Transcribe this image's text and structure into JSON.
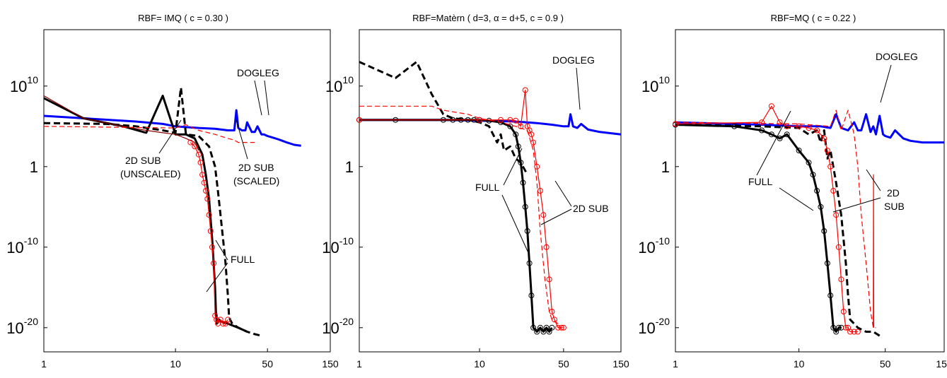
{
  "chart_data": [
    {
      "type": "line",
      "title": "RBF= IMQ ( c = 0.30 )",
      "xscale": "log",
      "yscale": "log",
      "xlim": [
        1,
        150
      ],
      "ylim_log10": [
        -23,
        17
      ],
      "xticks": [
        1,
        10,
        50,
        150
      ],
      "xtick_labels": [
        "1",
        "10",
        "50",
        "150"
      ],
      "yticks_log10": [
        10,
        0,
        -10,
        -20
      ],
      "ytick_labels": [
        {
          "base": "10",
          "exp": "10"
        },
        {
          "base": "1",
          "exp": ""
        },
        {
          "base": "10",
          "exp": "-10"
        },
        {
          "base": "10",
          "exp": "-20"
        }
      ],
      "series": [
        {
          "color": "#0000ff",
          "style": "thick-solid",
          "x": [
            1,
            2,
            5,
            8,
            10,
            15,
            20,
            25,
            28,
            29,
            30,
            32,
            34,
            35,
            38,
            40,
            42,
            45,
            47,
            50,
            55,
            60,
            65,
            70,
            80,
            90
          ],
          "y_log10": [
            6.3,
            6.0,
            5.6,
            5.3,
            5.0,
            4.8,
            4.7,
            4.5,
            4.5,
            7.0,
            4.8,
            4.5,
            4.5,
            5.5,
            4.3,
            4.3,
            5.0,
            4.0,
            4.0,
            3.8,
            3.6,
            3.4,
            3.2,
            3.0,
            2.7,
            2.6
          ]
        },
        {
          "color": "#000000",
          "style": "thick-solid",
          "x": [
            1,
            2,
            4,
            6,
            8,
            10,
            12,
            14,
            16,
            17,
            18,
            19,
            19.5,
            20,
            20.3,
            20.6,
            21,
            21.5,
            22,
            25,
            30,
            35
          ],
          "y_log10": [
            8.5,
            6.0,
            5.0,
            4.2,
            8.8,
            4.0,
            4.0,
            3.5,
            1.5,
            -1.0,
            -4.0,
            -9.0,
            -12.0,
            -15.0,
            -18.0,
            -19.5,
            -19.0,
            -19.0,
            -19.2,
            -19.5,
            -20.0,
            -20.5
          ]
        },
        {
          "color": "#000000",
          "style": "thick-dashed",
          "x": [
            1,
            3,
            5,
            8,
            10,
            11,
            12,
            15,
            18,
            20,
            21,
            22,
            23,
            24,
            25,
            25.5,
            26,
            27,
            30,
            35,
            40,
            45
          ],
          "y_log10": [
            5.4,
            5.3,
            5.0,
            4.5,
            4.2,
            9.8,
            4.0,
            3.8,
            2.5,
            0.0,
            -3.0,
            -6.0,
            -9.0,
            -12.0,
            -16.0,
            -18.5,
            -19.0,
            -19.5,
            -20.0,
            -20.5,
            -20.8,
            -21.0
          ]
        },
        {
          "color": "#8b0000",
          "style": "thin-solid",
          "x": [
            1,
            2,
            4,
            6,
            8,
            10,
            12,
            14,
            15
          ],
          "y_log10": [
            8.8,
            6.0,
            5.0,
            4.5,
            4.2,
            4.0,
            3.5,
            3.0,
            2.0
          ]
        },
        {
          "color": "#ff0000",
          "style": "thin-solid-circles",
          "x": [
            13,
            14,
            15,
            15.5,
            16,
            16.5,
            17,
            17.5,
            18,
            18.5,
            19,
            19.5,
            20,
            20.5,
            21,
            22,
            23,
            24,
            25
          ],
          "y_log10": [
            3.0,
            2.5,
            1.5,
            0.5,
            -1.0,
            -2.0,
            -3.0,
            -4.0,
            -6.0,
            -8.0,
            -10.0,
            -12.0,
            -18.5,
            -19.0,
            -19.5,
            -19.0,
            -19.5,
            -19.5,
            -19.0
          ]
        },
        {
          "color": "#ff0000",
          "style": "thin-dashed",
          "x": [
            1,
            10,
            12,
            15,
            20,
            25,
            28,
            30,
            35,
            40
          ],
          "y_log10": [
            5.0,
            4.8,
            5.2,
            4.5,
            4.0,
            3.5,
            3.3,
            3.0,
            3.0,
            3.0
          ]
        }
      ],
      "annotations": [
        {
          "lines": [
            "DOGLEG"
          ]
        },
        {
          "lines": [
            "2D SUB",
            "(UNSCALED)"
          ]
        },
        {
          "lines": [
            "2D SUB",
            "(SCALED)"
          ]
        },
        {
          "lines": [
            "FULL"
          ]
        }
      ]
    },
    {
      "type": "line",
      "title": "RBF=Matèrn ( d=3, α = d+5, c = 0.9 )",
      "xscale": "log",
      "yscale": "log",
      "xlim": [
        1,
        150
      ],
      "ylim_log10": [
        -23,
        17
      ],
      "xticks": [
        1,
        10,
        50,
        150
      ],
      "xtick_labels": [
        "1",
        "10",
        "50",
        "150"
      ],
      "yticks_log10": [
        10,
        0,
        -10,
        -20
      ],
      "ytick_labels": [
        {
          "base": "10",
          "exp": "10"
        },
        {
          "base": "1",
          "exp": ""
        },
        {
          "base": "10",
          "exp": "-10"
        },
        {
          "base": "10",
          "exp": "-20"
        }
      ],
      "series": [
        {
          "color": "#0000ff",
          "style": "thick-solid",
          "x": [
            1,
            5,
            10,
            20,
            30,
            40,
            50,
            55,
            57,
            60,
            65,
            70,
            80,
            100,
            150
          ],
          "y_log10": [
            5.8,
            5.8,
            5.7,
            5.6,
            5.4,
            5.2,
            5.0,
            5.0,
            6.5,
            5.0,
            4.8,
            5.3,
            4.6,
            4.3,
            4.0
          ]
        },
        {
          "color": "#000000",
          "style": "thick-solid-circles",
          "x": [
            1,
            2,
            5,
            6,
            7,
            8,
            9,
            10,
            12,
            15,
            18,
            20,
            21,
            22,
            23,
            24,
            25,
            26,
            27,
            28,
            30,
            32,
            34,
            36,
            38,
            40
          ],
          "y_log10": [
            5.8,
            5.8,
            5.8,
            5.8,
            5.8,
            5.8,
            5.8,
            5.8,
            5.7,
            5.5,
            5.0,
            4.0,
            2.5,
            0.5,
            -2.0,
            -5.0,
            -8.0,
            -12.0,
            -16.0,
            -20.0,
            -20.5,
            -20.0,
            -20.5,
            -20.0,
            -20.5,
            -20.0
          ]
        },
        {
          "color": "#000000",
          "style": "thick-dashed",
          "x": [
            1,
            2,
            3,
            4,
            5,
            6,
            8,
            10,
            12,
            14,
            15,
            16,
            18,
            20,
            22,
            25
          ],
          "y_log10": [
            13.0,
            11.0,
            13.0,
            9.0,
            6.5,
            6.0,
            5.8,
            5.5,
            5.0,
            3.0,
            4.0,
            2.0,
            2.5,
            1.0,
            0.5,
            -1.0
          ]
        },
        {
          "color": "#ff0000",
          "style": "thin-solid-circles",
          "x": [
            1,
            10,
            15,
            18,
            20,
            22,
            24,
            25,
            26,
            27,
            28,
            30,
            32,
            34,
            36,
            38,
            40,
            42,
            45,
            48,
            50
          ],
          "y_log10": [
            5.8,
            5.8,
            5.8,
            5.8,
            5.7,
            5.0,
            9.5,
            5.0,
            4.5,
            4.0,
            3.0,
            0.0,
            -3.0,
            -6.0,
            -10.0,
            -14.0,
            -18.0,
            -19.0,
            -20.0,
            -20.0,
            -20.0
          ]
        },
        {
          "color": "#ff0000",
          "style": "thin-dashed",
          "x": [
            1,
            4,
            5,
            8,
            10,
            15,
            20,
            25,
            28,
            30,
            32,
            35,
            38,
            40,
            45
          ],
          "y_log10": [
            7.5,
            7.5,
            7.0,
            6.5,
            6.0,
            5.5,
            5.0,
            4.5,
            2.0,
            -2.0,
            -8.0,
            -14.0,
            -18.0,
            -19.0,
            -19.5
          ]
        }
      ],
      "annotations": [
        {
          "lines": [
            "DOGLEG"
          ]
        },
        {
          "lines": [
            "FULL"
          ]
        },
        {
          "lines": [
            "2D SUB"
          ]
        }
      ]
    },
    {
      "type": "line",
      "title": "RBF=MQ ( c = 0.22 )",
      "xscale": "log",
      "yscale": "log",
      "xlim": [
        1,
        150
      ],
      "ylim_log10": [
        -23,
        17
      ],
      "xticks": [
        1,
        10,
        50,
        150
      ],
      "xtick_labels": [
        "1",
        "10",
        "50",
        "150"
      ],
      "yticks_log10": [
        10,
        0,
        -10,
        -20
      ],
      "ytick_labels": [
        {
          "base": "10",
          "exp": "10"
        },
        {
          "base": "1",
          "exp": ""
        },
        {
          "base": "10",
          "exp": "-10"
        },
        {
          "base": "10",
          "exp": "-20"
        }
      ],
      "series": [
        {
          "color": "#0000ff",
          "style": "thick-solid",
          "x": [
            1,
            5,
            10,
            15,
            18,
            20,
            22,
            25,
            28,
            30,
            32,
            35,
            38,
            40,
            42,
            45,
            48,
            50,
            55,
            60,
            70,
            80,
            100,
            150
          ],
          "y_log10": [
            5.5,
            5.2,
            5.0,
            5.0,
            4.8,
            6.5,
            4.8,
            4.5,
            5.5,
            4.5,
            4.5,
            6.5,
            4.3,
            5.0,
            4.0,
            6.3,
            4.0,
            3.8,
            3.6,
            4.5,
            3.5,
            3.2,
            3.0,
            3.0
          ]
        },
        {
          "color": "#000000",
          "style": "thick-solid-circles",
          "x": [
            1,
            3,
            5,
            6,
            7,
            8,
            10,
            12,
            13,
            14,
            15,
            16,
            17,
            18,
            19,
            20,
            21,
            22
          ],
          "y_log10": [
            5.2,
            5.0,
            4.5,
            4.0,
            3.5,
            4.0,
            2.0,
            0.5,
            -1.0,
            -3.0,
            -5.0,
            -8.0,
            -12.0,
            -16.0,
            -20.0,
            -20.5,
            -20.0,
            -20.0
          ]
        },
        {
          "color": "#000000",
          "style": "thick-dashed",
          "x": [
            1,
            5,
            10,
            12,
            14,
            15,
            16,
            17,
            18,
            20,
            22,
            24,
            25,
            26,
            28,
            30,
            35,
            40,
            45
          ],
          "y_log10": [
            5.2,
            5.0,
            4.8,
            4.0,
            4.5,
            3.0,
            4.5,
            1.0,
            2.0,
            -2.0,
            -6.0,
            -12.0,
            -16.0,
            -19.0,
            -19.5,
            -20.0,
            -20.5,
            -20.5,
            -21.0
          ]
        },
        {
          "color": "#ff0000",
          "style": "thin-solid-circles",
          "x": [
            1,
            5,
            6,
            7,
            8,
            10,
            12,
            14,
            16,
            17,
            18,
            19,
            20,
            21,
            22,
            23,
            24,
            25,
            26,
            28,
            30
          ],
          "y_log10": [
            5.3,
            5.5,
            7.5,
            5.5,
            5.0,
            5.0,
            4.8,
            4.5,
            3.5,
            2.0,
            0.0,
            -3.0,
            -6.0,
            -10.0,
            -14.0,
            -18.0,
            -20.0,
            -20.0,
            -20.5,
            -20.5,
            -20.5
          ]
        },
        {
          "color": "#ff0000",
          "style": "thin-dashed",
          "x": [
            1,
            10,
            18,
            20,
            22,
            25,
            28,
            30,
            32,
            35,
            38,
            40,
            42
          ],
          "y_log10": [
            5.5,
            5.3,
            5.0,
            7.0,
            4.5,
            7.0,
            4.0,
            0.0,
            -6.0,
            -12.0,
            -18.0,
            -20.0,
            -20.0
          ]
        },
        {
          "color": "#ff0000",
          "style": "thin-solid",
          "x": [
            40,
            40.2,
            40.4
          ],
          "y_log10": [
            -20.0,
            -1.0,
            -20.0
          ]
        }
      ],
      "annotations": [
        {
          "lines": [
            "DOGLEG"
          ]
        },
        {
          "lines": [
            "FULL"
          ]
        },
        {
          "lines": [
            "2D",
            "SUB"
          ]
        }
      ]
    }
  ]
}
